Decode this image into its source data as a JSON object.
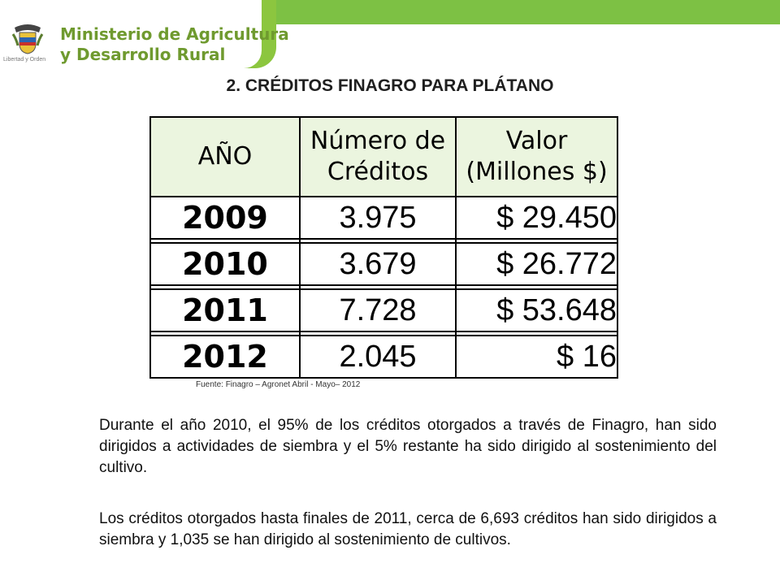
{
  "header": {
    "ministry_line1": "Ministerio de Agricultura",
    "ministry_line2": "y Desarrollo Rural",
    "logo_caption": "Libertad y Orden",
    "brand_green": "#8cc63f",
    "text_green": "#6f9a2f",
    "logo_icon": "colombia-coat-of-arms-icon"
  },
  "slide_title": "2. CRÉDITOS FINAGRO PARA PLÁTANO",
  "table": {
    "header_bg": "#ebf5df",
    "headers": {
      "year": "AÑO",
      "credits_line1": "Número de",
      "credits_line2": "Créditos",
      "value_line1": "Valor",
      "value_line2": "(Millones $)"
    },
    "rows": [
      {
        "year": "2009",
        "credits": "3.975",
        "value": "$ 29.450"
      },
      {
        "year": "2010",
        "credits": "3.679",
        "value": "$ 26.772"
      },
      {
        "year": "2011",
        "credits": "7.728",
        "value": "$ 53.648"
      },
      {
        "year": "2012",
        "credits": "2.045",
        "value": "$ 16"
      }
    ]
  },
  "source": "Fuente: Finagro – Agronet Abril - Mayo– 2012",
  "paragraphs": {
    "p1": "Durante el año 2010, el 95% de los créditos otorgados a través de Finagro, han sido dirigidos a actividades de siembra y el 5% restante ha sido dirigido al sostenimiento del cultivo.",
    "p2": "Los créditos otorgados hasta finales de 2011, cerca de 6,693 créditos han sido dirigidos a siembra y 1,035 se han dirigido al sostenimiento de cultivos."
  }
}
